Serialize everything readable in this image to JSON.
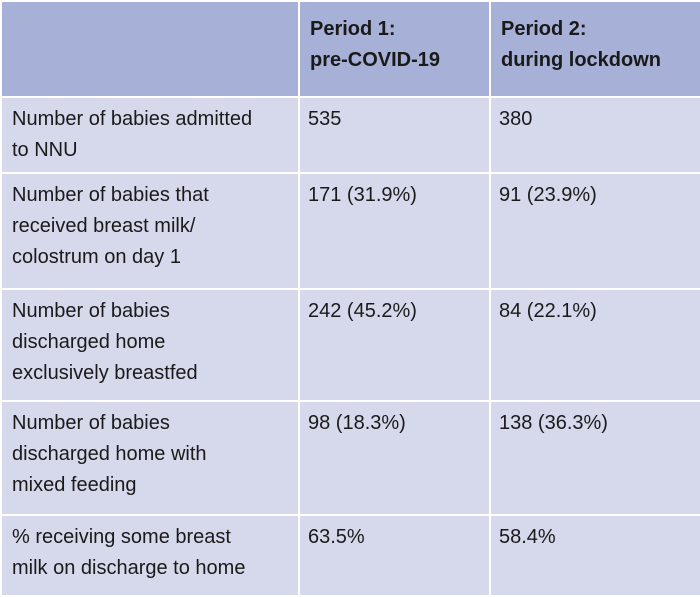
{
  "table": {
    "headers": [
      "",
      "Period 1:\npre-COVID-19",
      "Period 2:\nduring lockdown"
    ],
    "rows": [
      {
        "label": "Number of babies admitted\nto NNU",
        "period1": "535",
        "period2": "380"
      },
      {
        "label": "Number of babies that\nreceived breast milk/\ncolostrum on day 1",
        "period1": "171 (31.9%)",
        "period2": "91 (23.9%)"
      },
      {
        "label": "Number of babies\ndischarged home\nexclusively breastfed",
        "period1": "242 (45.2%)",
        "period2": "84 (22.1%)"
      },
      {
        "label": "Number of babies\ndischarged home with\nmixed feeding",
        "period1": "98 (18.3%)",
        "period2": "138 (36.3%)"
      },
      {
        "label": "% receiving some breast\nmilk on discharge to home",
        "period1": "63.5%",
        "period2": "58.4%"
      }
    ]
  },
  "colors": {
    "header_bg": "#a7b0d6",
    "cell_bg": "#d6d9ec",
    "grid_lines": "#ffffff"
  }
}
